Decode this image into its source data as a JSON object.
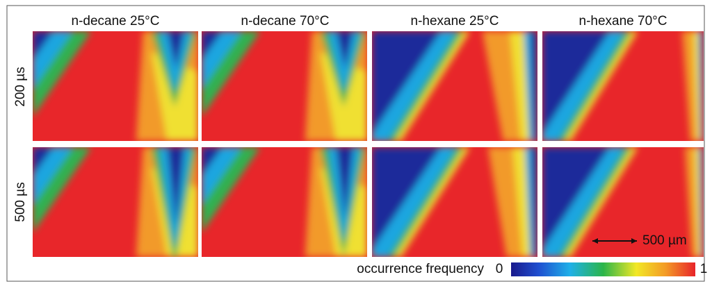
{
  "column_titles": [
    "n-decane 25°C",
    "n-decane 70°C",
    "n-hexane 25°C",
    "n-hexane 70°C"
  ],
  "row_labels": [
    "200 µs",
    "500 µs"
  ],
  "scale_bar": "500 µm",
  "colorbar": {
    "label": "occurrence frequency",
    "min": 0,
    "max": 1
  }
}
